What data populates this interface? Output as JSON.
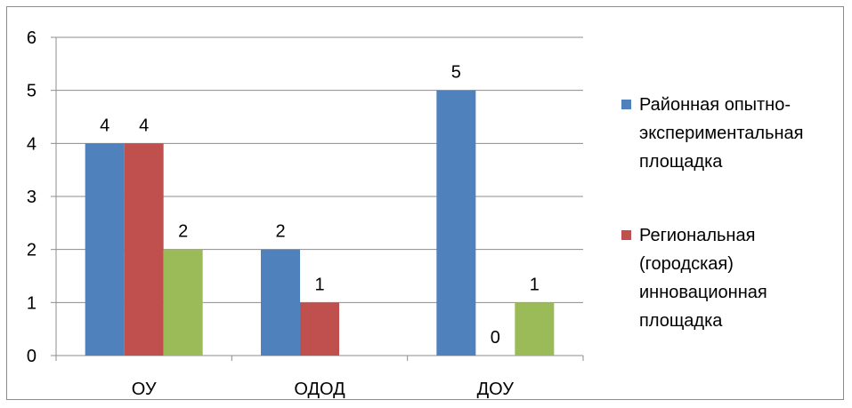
{
  "chart_data": {
    "type": "bar",
    "categories": [
      "ОУ",
      "ОДОД",
      "ДОУ"
    ],
    "series": [
      {
        "name": "Районная опытно-экспериментальная площадка",
        "color": "#4f81bd",
        "values": [
          4,
          2,
          5
        ]
      },
      {
        "name": "Региональная (городская) инновационная площадка",
        "color": "#c0504d",
        "values": [
          4,
          1,
          0
        ]
      },
      {
        "name": "",
        "color": "#9bbb59",
        "values": [
          2,
          null,
          1
        ]
      }
    ],
    "y_ticks": [
      "0",
      "1",
      "2",
      "3",
      "4",
      "5",
      "6"
    ],
    "ylim": [
      0,
      6
    ],
    "grid": true,
    "legend_position": "right",
    "legend": {
      "entry_1_lines": [
        "Районная опытно-",
        "экспериментальная",
        "площадка"
      ],
      "entry_2_lines": [
        "Региональная",
        "(городская)",
        "инновационная",
        "площадка"
      ]
    }
  }
}
